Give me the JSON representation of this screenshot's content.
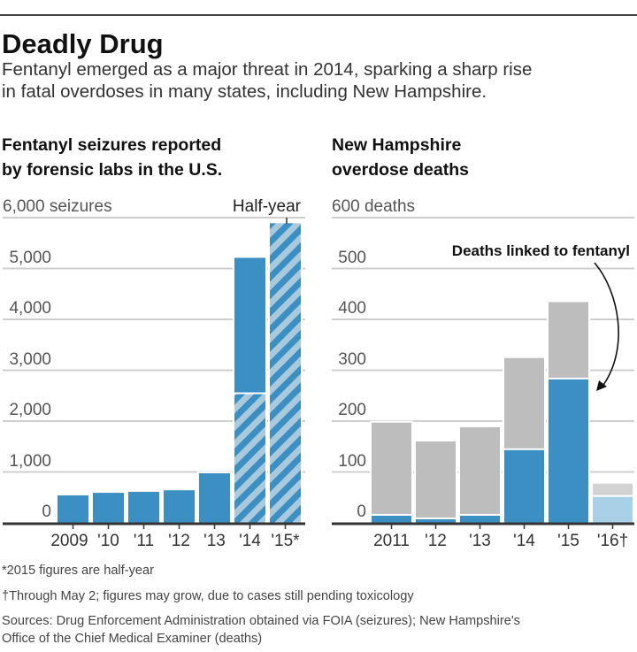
{
  "title": "Deadly Drug",
  "subtitle": [
    "Fentanyl emerged as a major threat in 2014, sparking a sharp rise",
    "in fatal overdoses in many states, including New Hampshire."
  ],
  "colors": {
    "fentanyl_blue": "#3b8fc3",
    "hatch_light": "#a9c9dd",
    "other_gray": "#bdbdbd",
    "partial_light_blue": "#a8d0e6",
    "grid": "#cfcfcf",
    "baseline": "#333333"
  },
  "chart_data": [
    {
      "type": "bar",
      "title": [
        "Fentanyl seizures reported",
        "by forensic labs in the U.S."
      ],
      "unit_label": "6,000 seizures",
      "yticks": [
        "0",
        "1,000",
        "2,000",
        "3,000",
        "4,000",
        "5,000"
      ],
      "ylim": [
        0,
        6000
      ],
      "grid": true,
      "categories": [
        "2009",
        "'10",
        "'11",
        "'12",
        "'13",
        "'14",
        "'15*"
      ],
      "values": [
        540,
        590,
        610,
        640,
        975,
        5210,
        5890
      ],
      "hatched_portion": [
        0,
        0,
        0,
        0,
        0,
        2530,
        5890
      ],
      "annotation": "Half-year"
    },
    {
      "type": "bar",
      "stacked": true,
      "title": [
        "New Hampshire",
        "overdose deaths"
      ],
      "unit_label": "600 deaths",
      "yticks": [
        "0",
        "100",
        "200",
        "300",
        "400",
        "500"
      ],
      "ylim": [
        0,
        600
      ],
      "grid": true,
      "categories": [
        "2011",
        "'12",
        "'13",
        "'14",
        "'15",
        "'16†"
      ],
      "series": [
        {
          "name": "Deaths linked to fentanyl",
          "values": [
            14,
            7,
            14,
            143,
            282,
            51
          ]
        },
        {
          "values": [
            183,
            153,
            174,
            181,
            152,
            26
          ]
        }
      ],
      "totals": [
        197,
        160,
        188,
        324,
        434,
        77
      ],
      "annotation": "Deaths linked to fentanyl"
    }
  ],
  "footnotes": [
    "*2015 figures are half-year",
    "†Through May 2; figures may grow, due to cases still pending toxicology",
    "Sources: Drug Enforcement Administration obtained via FOIA (seizures); New Hampshire's",
    "Office of the Chief Medical Examiner (deaths)"
  ]
}
